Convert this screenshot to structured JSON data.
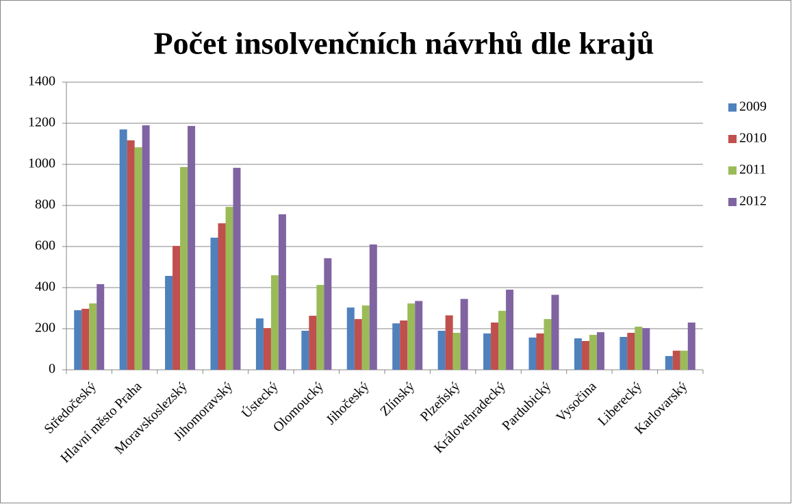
{
  "chart_data": {
    "type": "bar",
    "title": "Počet insolvenčních návrhů dle krajů",
    "categories": [
      "Středočeský",
      "Hlavní město Praha",
      "Moravskoslezský",
      "Jihomoravský",
      "Ústecký",
      "Olomoucký",
      "Jihočeský",
      "Zlínský",
      "Plzeňský",
      "Královehradecký",
      "Pardubický",
      "Vysočina",
      "Liberecký",
      "Karlovarský"
    ],
    "series": [
      {
        "name": "2009",
        "color": "#4f81bd",
        "values": [
          290,
          1170,
          457,
          643,
          250,
          190,
          303,
          226,
          190,
          177,
          157,
          153,
          160,
          67
        ]
      },
      {
        "name": "2010",
        "color": "#c0504d",
        "values": [
          297,
          1117,
          603,
          713,
          203,
          263,
          247,
          240,
          265,
          230,
          177,
          140,
          180,
          93
        ]
      },
      {
        "name": "2011",
        "color": "#9bbb59",
        "values": [
          323,
          1083,
          987,
          793,
          460,
          413,
          313,
          323,
          180,
          287,
          247,
          170,
          210,
          93
        ]
      },
      {
        "name": "2012",
        "color": "#8064a2",
        "values": [
          417,
          1190,
          1187,
          983,
          757,
          543,
          610,
          335,
          345,
          390,
          365,
          183,
          203,
          230
        ]
      }
    ],
    "ylim": [
      0,
      1400
    ],
    "yticks": [
      0,
      200,
      400,
      600,
      800,
      1000,
      1200,
      1400
    ],
    "grid": true,
    "legend": "right"
  }
}
